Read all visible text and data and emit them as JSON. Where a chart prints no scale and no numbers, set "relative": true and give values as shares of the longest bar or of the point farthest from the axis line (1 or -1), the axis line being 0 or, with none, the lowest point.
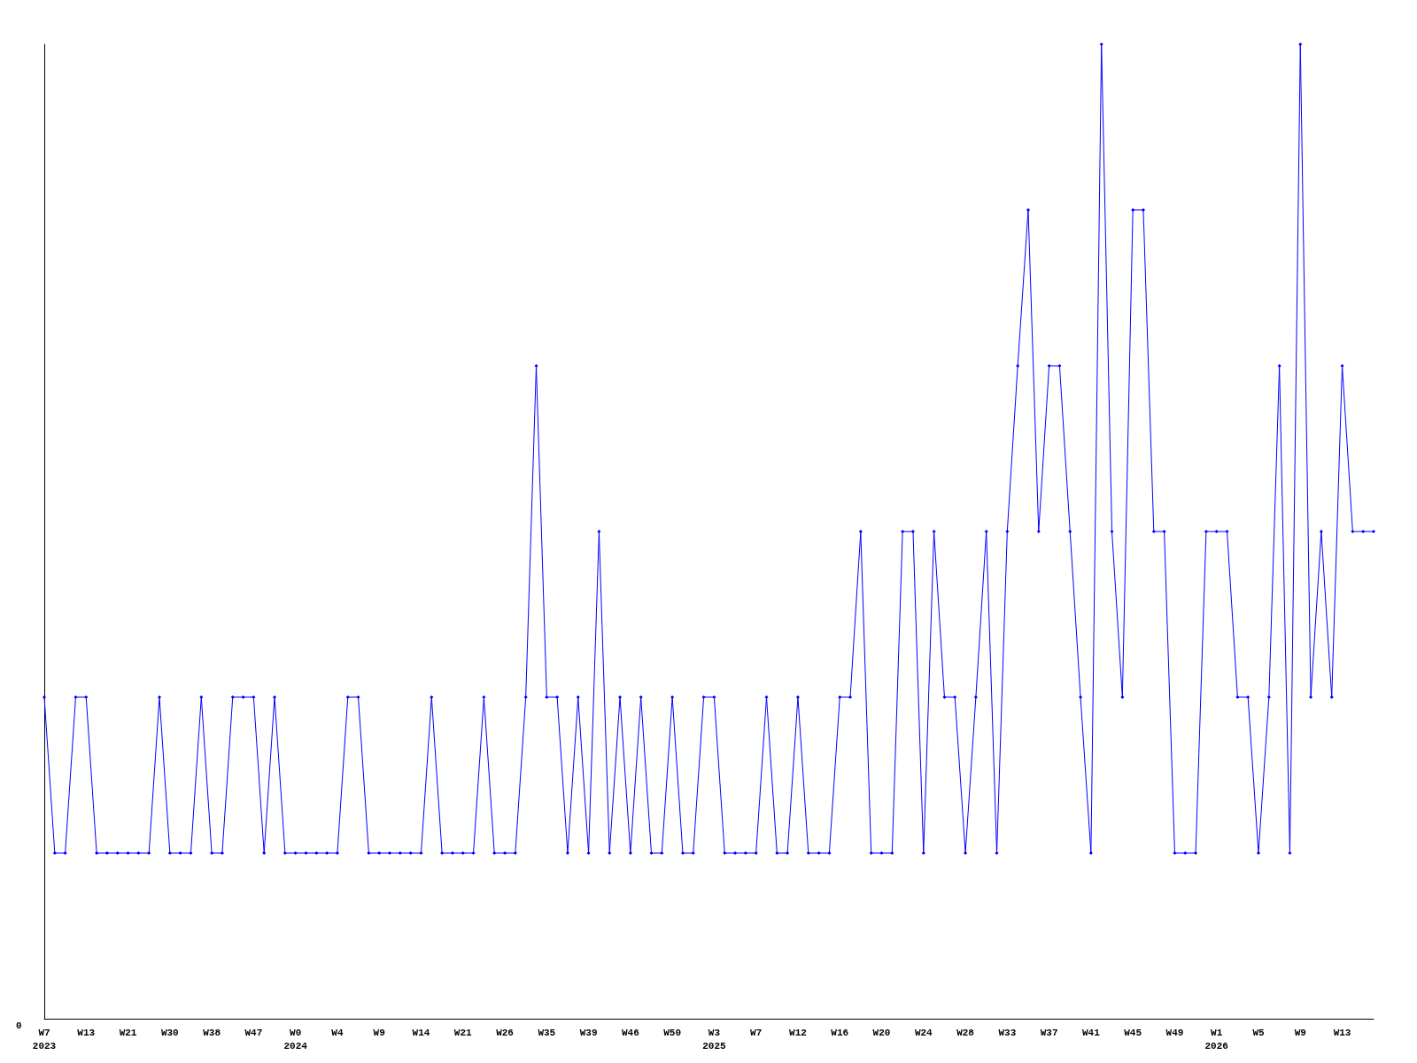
{
  "chart_data": {
    "type": "line",
    "relative": true,
    "marker": "diamond",
    "line_style": "solid",
    "grid": false,
    "annotations": [
      "0"
    ],
    "categories": [
      "W7\n2023",
      null,
      null,
      null,
      "W13",
      null,
      null,
      null,
      "W21",
      null,
      null,
      null,
      "W30",
      null,
      null,
      null,
      "W38",
      null,
      null,
      null,
      "W47",
      null,
      null,
      null,
      "W0\n2024",
      null,
      null,
      null,
      "W4",
      null,
      null,
      null,
      "W9",
      null,
      null,
      null,
      "W14",
      null,
      null,
      null,
      "W21",
      null,
      null,
      null,
      "W26",
      null,
      null,
      null,
      "W35",
      null,
      null,
      null,
      "W39",
      null,
      null,
      null,
      "W46",
      null,
      null,
      null,
      "W50",
      null,
      null,
      null,
      "W3\n2025",
      null,
      null,
      null,
      "W7",
      null,
      null,
      null,
      "W12",
      null,
      null,
      null,
      "W16",
      null,
      null,
      null,
      "W20",
      null,
      null,
      null,
      "W24",
      null,
      null,
      null,
      "W28",
      null,
      null,
      null,
      "W33",
      null,
      null,
      null,
      "W37",
      null,
      null,
      null,
      "W41",
      null,
      null,
      null,
      "W45",
      null,
      null,
      null,
      "W49",
      null,
      null,
      null,
      "W1\n2026",
      null,
      null,
      null,
      "W5",
      null,
      null,
      null,
      "W9",
      null,
      null,
      null,
      "W13",
      null,
      null,
      null
    ],
    "series": [
      {
        "color": "#0000ff",
        "values": [
          0.33,
          0.17,
          0.17,
          0.33,
          0.33,
          0.17,
          0.17,
          0.17,
          0.17,
          0.17,
          0.17,
          0.33,
          0.17,
          0.17,
          0.17,
          0.33,
          0.17,
          0.17,
          0.33,
          0.33,
          0.33,
          0.17,
          0.33,
          0.17,
          0.17,
          0.17,
          0.17,
          0.17,
          0.17,
          0.33,
          0.33,
          0.17,
          0.17,
          0.17,
          0.17,
          0.17,
          0.17,
          0.33,
          0.17,
          0.17,
          0.17,
          0.17,
          0.33,
          0.17,
          0.17,
          0.17,
          0.33,
          0.67,
          0.33,
          0.33,
          0.17,
          0.33,
          0.17,
          0.5,
          0.17,
          0.33,
          0.17,
          0.33,
          0.17,
          0.17,
          0.33,
          0.17,
          0.17,
          0.33,
          0.33,
          0.17,
          0.17,
          0.17,
          0.17,
          0.33,
          0.17,
          0.17,
          0.33,
          0.17,
          0.17,
          0.17,
          0.33,
          0.33,
          0.5,
          0.17,
          0.17,
          0.17,
          0.5,
          0.5,
          0.17,
          0.5,
          0.33,
          0.33,
          0.17,
          0.33,
          0.5,
          0.17,
          0.5,
          0.67,
          0.83,
          0.5,
          0.67,
          0.67,
          0.5,
          0.33,
          0.17,
          1,
          0.5,
          0.33,
          0.83,
          0.83,
          0.5,
          0.5,
          0.17,
          0.17,
          0.17,
          0.5,
          0.5,
          0.5,
          0.33,
          0.33,
          0.17,
          0.33,
          0.67,
          0.17,
          1,
          0.33,
          0.5,
          0.33,
          0.67,
          0.5,
          0.5,
          0.5
        ]
      }
    ]
  }
}
